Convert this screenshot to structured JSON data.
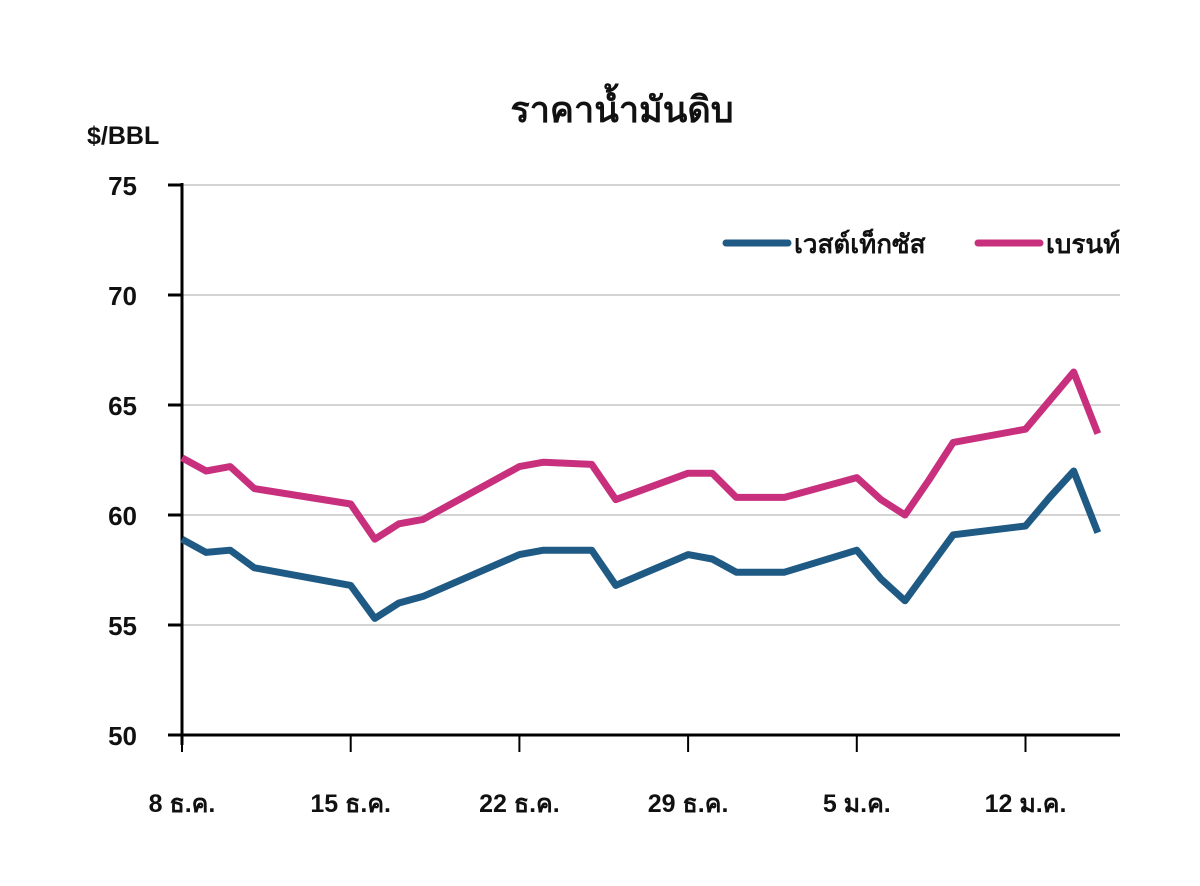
{
  "chart_data": {
    "type": "line",
    "title": "ราคาน้ำมันดิบ",
    "ylabel": "$/BBL",
    "xlabel": "",
    "ylim": [
      50,
      75
    ],
    "yticks": [
      50,
      55,
      60,
      65,
      70,
      75
    ],
    "xtick_labels": [
      "8 ธ.ค.",
      "15 ธ.ค.",
      "22 ธ.ค.",
      "29 ธ.ค.",
      "5 ม.ค.",
      "12 ม.ค."
    ],
    "grid": true,
    "legend_position": "top-right",
    "x_day_offsets": [
      0,
      1,
      2,
      3,
      7,
      8,
      9,
      10,
      14,
      15,
      17,
      18,
      21,
      22,
      23,
      25,
      28,
      29,
      30,
      31,
      32,
      35,
      36,
      37,
      38
    ],
    "series": [
      {
        "name": "เวสต์เท็กซัส",
        "color": "#1f5a85",
        "values": [
          58.9,
          58.3,
          58.4,
          57.6,
          56.8,
          55.3,
          56.0,
          56.3,
          58.2,
          58.4,
          58.4,
          56.8,
          58.2,
          58.0,
          57.4,
          57.4,
          58.4,
          57.1,
          56.1,
          57.6,
          59.1,
          59.5,
          60.8,
          62.0,
          59.2
        ]
      },
      {
        "name": "เบรนท์",
        "color": "#c8307e",
        "values": [
          62.6,
          62.0,
          62.2,
          61.2,
          60.5,
          58.9,
          59.6,
          59.8,
          62.2,
          62.4,
          62.3,
          60.7,
          61.9,
          61.9,
          60.8,
          60.8,
          61.7,
          60.7,
          60.0,
          61.6,
          63.3,
          63.9,
          65.2,
          66.5,
          63.7
        ]
      }
    ]
  }
}
